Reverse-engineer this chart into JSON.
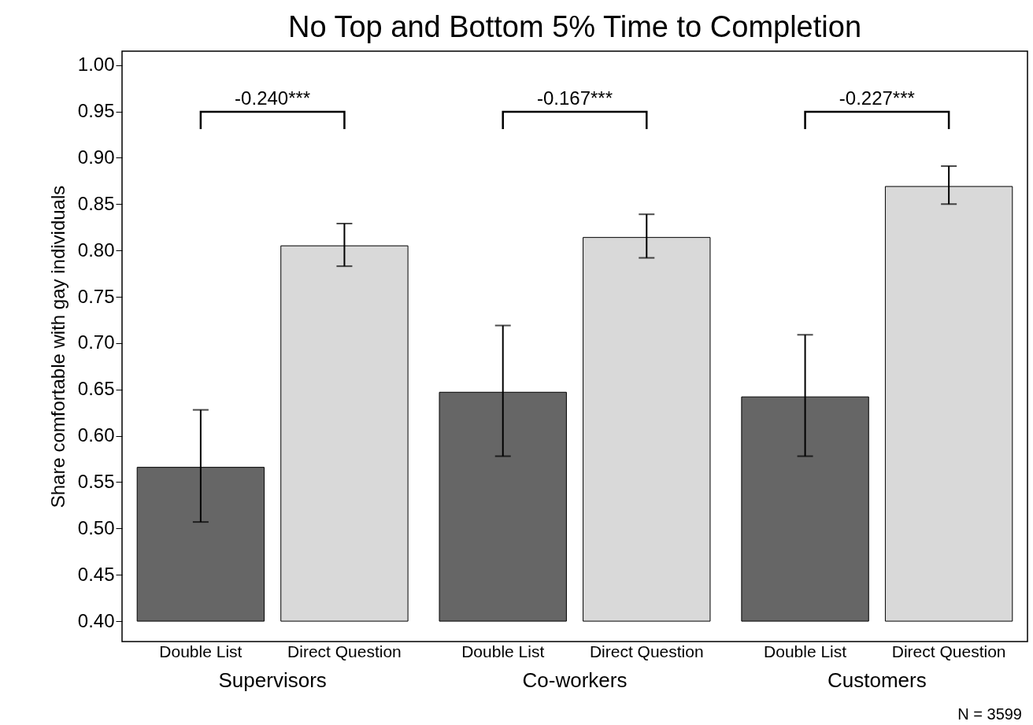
{
  "chart_data": {
    "type": "bar",
    "title": "No Top and Bottom 5% Time to Completion",
    "ylabel": "Share comfortable with gay individuals",
    "categories": [
      "Supervisors",
      "Co-workers",
      "Customers"
    ],
    "series": [
      {
        "name": "Double List",
        "color": "#666666",
        "base": [
          0.4,
          0.4,
          0.4
        ],
        "values": [
          0.166,
          0.247,
          0.242
        ],
        "errors": [
          [
            0.507,
            0.628
          ],
          [
            0.578,
            0.719
          ],
          [
            0.578,
            0.709
          ]
        ]
      },
      {
        "name": "Direct Question",
        "color": "#d9d9d9",
        "base": [
          0.4,
          0.4,
          0.4
        ],
        "values": [
          0.405,
          0.414,
          0.469
        ],
        "errors": [
          [
            0.783,
            0.829
          ],
          [
            0.792,
            0.839
          ],
          [
            0.85,
            0.891
          ]
        ]
      }
    ],
    "ylim": [
      0.378,
      1.015
    ],
    "yticks": [
      {
        "value": 0.4,
        "label": "0.40"
      },
      {
        "value": 0.45,
        "label": "0.45"
      },
      {
        "value": 0.5,
        "label": "0.50"
      },
      {
        "value": 0.55,
        "label": "0.55"
      },
      {
        "value": 0.6,
        "label": "0.60"
      },
      {
        "value": 0.65,
        "label": "0.65"
      },
      {
        "value": 0.7,
        "label": "0.70"
      },
      {
        "value": 0.75,
        "label": "0.75"
      },
      {
        "value": 0.8,
        "label": "0.80"
      },
      {
        "value": 0.85,
        "label": "0.85"
      },
      {
        "value": 0.9,
        "label": "0.90"
      },
      {
        "value": 0.95,
        "label": "0.95"
      },
      {
        "value": 1.0,
        "label": "1.00"
      }
    ],
    "grid": false,
    "legend": false,
    "annotations": [
      "-0.240***",
      "-0.167***",
      "-0.227***",
      "N = 3599"
    ]
  }
}
